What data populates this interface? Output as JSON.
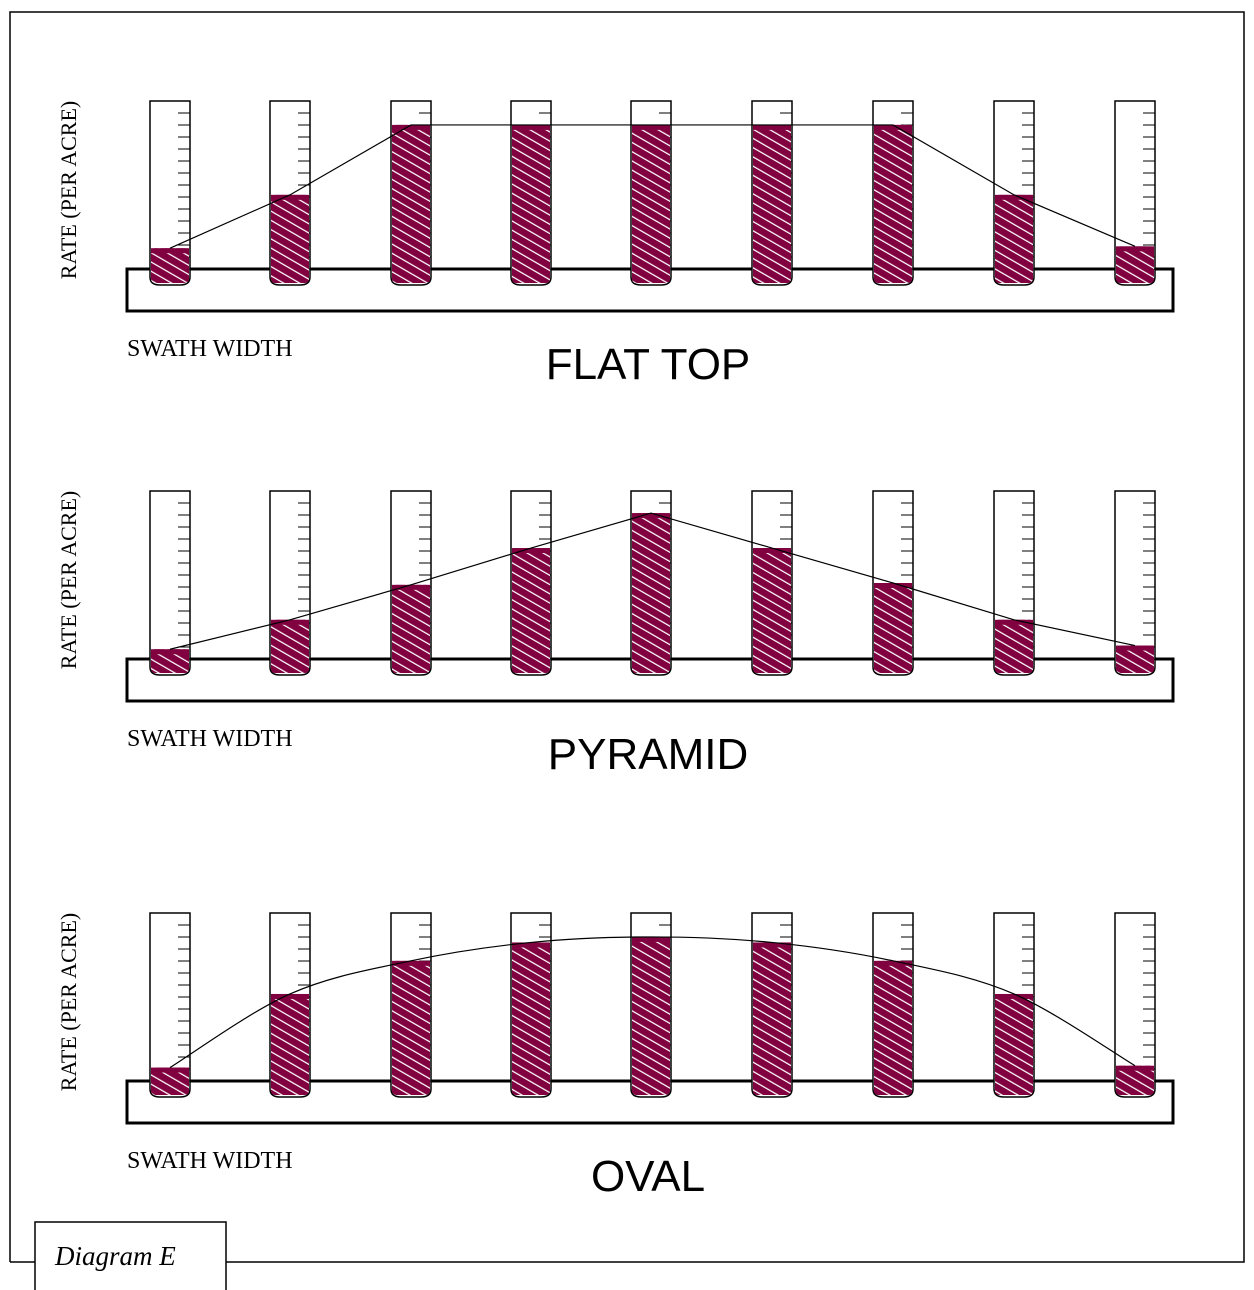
{
  "caption": "Diagram E",
  "panels": [
    {
      "title": "FLAT TOP",
      "y_label": "RATE (PER ACRE)",
      "x_label": "SWATH WIDTH",
      "smooth": false,
      "levels": [
        20,
        49,
        87,
        87,
        87,
        87,
        87,
        49,
        21
      ]
    },
    {
      "title": "PYRAMID",
      "y_label": "RATE (PER ACRE)",
      "x_label": "SWATH WIDTH",
      "smooth": false,
      "levels": [
        14,
        30,
        49,
        69,
        88,
        69,
        50,
        30,
        16
      ]
    },
    {
      "title": "OVAL",
      "y_label": "RATE (PER ACRE)",
      "x_label": "SWATH WIDTH",
      "smooth": true,
      "levels": [
        16,
        56,
        74,
        84,
        87,
        84,
        74,
        56,
        17
      ]
    }
  ]
}
